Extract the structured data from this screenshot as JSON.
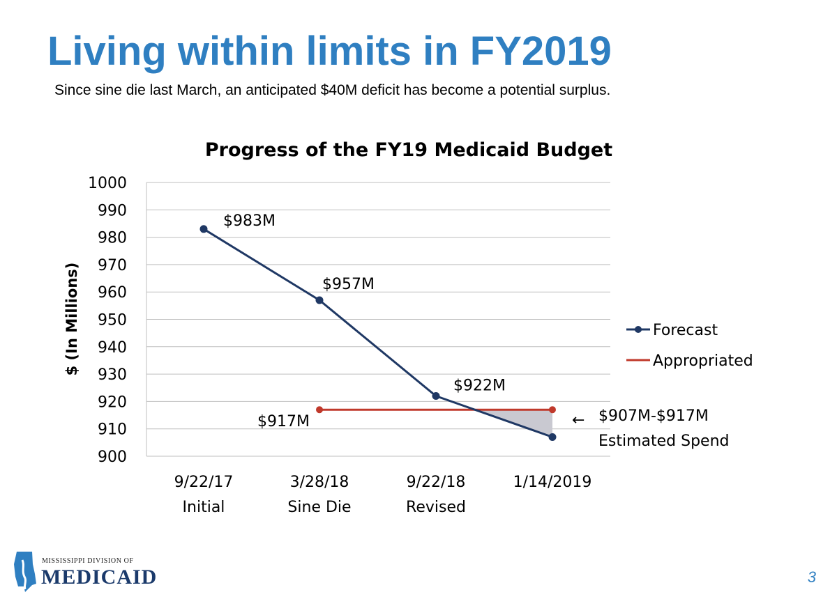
{
  "slide": {
    "title": "Living within limits in FY2019",
    "subtitle": "Since sine die last March, an anticipated $40M deficit has become a potential surplus.",
    "page_number": "3"
  },
  "logo": {
    "line1": "MISSISSIPPI DIVISION OF",
    "line2": "MEDICAID",
    "icon": "mississippi-state-icon"
  },
  "colors": {
    "title": "#2f7fc1",
    "forecast": "#1f3864",
    "appropriated": "#c0392b",
    "shade": "#c9c9d1",
    "grid": "#bfbfbf"
  },
  "chart_data": {
    "type": "line",
    "title": "Progress of the FY19 Medicaid Budget",
    "xlabel": "",
    "ylabel": "$ (In Millions)",
    "ylim": [
      900,
      1000
    ],
    "yticks": [
      1000,
      990,
      980,
      970,
      960,
      950,
      940,
      930,
      920,
      910,
      900
    ],
    "grid": true,
    "legend_position": "right",
    "categories": [
      {
        "date": "9/22/17",
        "label": "Initial"
      },
      {
        "date": "3/28/18",
        "label": "Sine Die"
      },
      {
        "date": "9/22/18",
        "label": "Revised"
      },
      {
        "date": "1/14/2019",
        "label": ""
      }
    ],
    "series": [
      {
        "name": "Forecast",
        "values": [
          983,
          957,
          922,
          907
        ],
        "labels": [
          "$983M",
          "$957M",
          "$922M",
          ""
        ]
      },
      {
        "name": "Appropriated",
        "values": [
          null,
          917,
          917,
          917
        ],
        "labels": [
          "",
          "$917M",
          "",
          ""
        ]
      }
    ],
    "annotation": {
      "arrow": "←",
      "line1": "$907M-$917M",
      "line2": "Estimated Spend"
    }
  }
}
